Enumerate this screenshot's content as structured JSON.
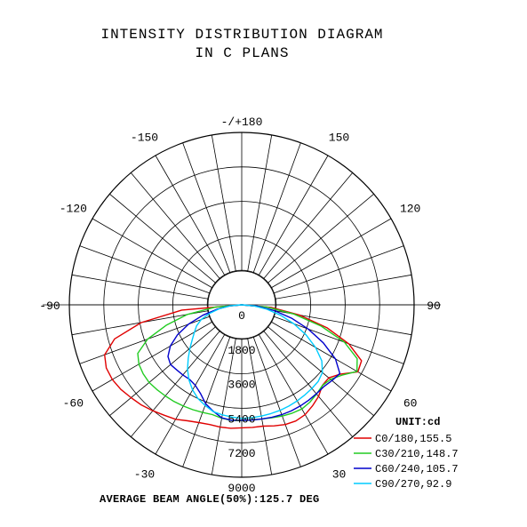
{
  "header": {
    "title_line1": "INTENSITY DISTRIBUTION DIAGRAM",
    "title_line2": "IN C PLANS"
  },
  "footer": {
    "beam_angle_text": "AVERAGE BEAM ANGLE(50%):125.7 DEG"
  },
  "chart_data": {
    "type": "polar",
    "title": "INTENSITY DISTRIBUTION DIAGRAM IN C PLANS",
    "unit_label": "UNIT:cd",
    "radial_range": [
      0,
      9000
    ],
    "radial_ticks": [
      0,
      1800,
      3600,
      5400,
      7200,
      9000
    ],
    "radial_tick_labels": [
      "0",
      "1800",
      "3600",
      "5400",
      "7200",
      "9000"
    ],
    "angle_ticks": [
      {
        "angle": 180,
        "label": "-/+180"
      },
      {
        "angle": 150,
        "label": "150"
      },
      {
        "angle": -150,
        "label": "-150"
      },
      {
        "angle": 120,
        "label": "120"
      },
      {
        "angle": -120,
        "label": "-120"
      },
      {
        "angle": 90,
        "label": "90"
      },
      {
        "angle": -90,
        "label": "-90"
      },
      {
        "angle": 60,
        "label": "60"
      },
      {
        "angle": -60,
        "label": "-60"
      },
      {
        "angle": 30,
        "label": "30"
      },
      {
        "angle": -30,
        "label": "-30"
      },
      {
        "angle": 0,
        "label": "0"
      }
    ],
    "grid": true,
    "legend_position": "bottom-right",
    "series": [
      {
        "name": "C0/180,155.5",
        "color": "#e00000",
        "points": [
          [
            90,
            0
          ],
          [
            85,
            1550
          ],
          [
            80,
            3050
          ],
          [
            75,
            4600
          ],
          [
            70,
            5950
          ],
          [
            65,
            6900
          ],
          [
            60,
            7000
          ],
          [
            55,
            6300
          ],
          [
            50,
            5930
          ],
          [
            45,
            5950
          ],
          [
            40,
            6240
          ],
          [
            35,
            6440
          ],
          [
            30,
            6620
          ],
          [
            25,
            6690
          ],
          [
            20,
            6650
          ],
          [
            15,
            6540
          ],
          [
            10,
            6430
          ],
          [
            5,
            6420
          ],
          [
            0,
            6420
          ],
          [
            -5,
            6470
          ],
          [
            -10,
            6480
          ],
          [
            -15,
            6470
          ],
          [
            -20,
            6540
          ],
          [
            -25,
            6680
          ],
          [
            -30,
            6900
          ],
          [
            -35,
            7040
          ],
          [
            -40,
            7220
          ],
          [
            -45,
            7400
          ],
          [
            -50,
            7540
          ],
          [
            -55,
            7700
          ],
          [
            -60,
            7800
          ],
          [
            -65,
            7800
          ],
          [
            -70,
            7620
          ],
          [
            -75,
            6870
          ],
          [
            -80,
            5330
          ],
          [
            -85,
            3140
          ],
          [
            -90,
            0
          ]
        ]
      },
      {
        "name": "C30/210,148.7",
        "color": "#22cc22",
        "points": [
          [
            90,
            0
          ],
          [
            85,
            1300
          ],
          [
            80,
            2760
          ],
          [
            75,
            4300
          ],
          [
            70,
            5700
          ],
          [
            65,
            6650
          ],
          [
            60,
            6950
          ],
          [
            55,
            6400
          ],
          [
            50,
            6050
          ],
          [
            45,
            5960
          ],
          [
            40,
            6080
          ],
          [
            35,
            6200
          ],
          [
            30,
            6280
          ],
          [
            25,
            6240
          ],
          [
            20,
            6180
          ],
          [
            15,
            6100
          ],
          [
            10,
            6050
          ],
          [
            5,
            6030
          ],
          [
            0,
            6040
          ],
          [
            -5,
            6060
          ],
          [
            -10,
            6010
          ],
          [
            -15,
            5930
          ],
          [
            -20,
            5980
          ],
          [
            -25,
            6040
          ],
          [
            -30,
            6100
          ],
          [
            -35,
            6160
          ],
          [
            -40,
            6210
          ],
          [
            -45,
            6260
          ],
          [
            -50,
            6310
          ],
          [
            -55,
            6280
          ],
          [
            -60,
            6200
          ],
          [
            -65,
            5990
          ],
          [
            -70,
            5230
          ],
          [
            -75,
            4060
          ],
          [
            -80,
            2880
          ],
          [
            -85,
            1390
          ],
          [
            -90,
            0
          ]
        ]
      },
      {
        "name": "C60/240,105.7",
        "color": "#0000cc",
        "points": [
          [
            90,
            0
          ],
          [
            85,
            820
          ],
          [
            80,
            1720
          ],
          [
            75,
            2700
          ],
          [
            70,
            3700
          ],
          [
            65,
            4700
          ],
          [
            60,
            5650
          ],
          [
            55,
            6250
          ],
          [
            50,
            6150
          ],
          [
            45,
            6050
          ],
          [
            40,
            6060
          ],
          [
            35,
            6080
          ],
          [
            30,
            6100
          ],
          [
            25,
            6110
          ],
          [
            20,
            6100
          ],
          [
            15,
            6080
          ],
          [
            10,
            6050
          ],
          [
            5,
            6040
          ],
          [
            0,
            6030
          ],
          [
            -5,
            6050
          ],
          [
            -10,
            5990
          ],
          [
            -15,
            5750
          ],
          [
            -20,
            5500
          ],
          [
            -25,
            5100
          ],
          [
            -30,
            4850
          ],
          [
            -35,
            4750
          ],
          [
            -40,
            4780
          ],
          [
            -45,
            4800
          ],
          [
            -50,
            4850
          ],
          [
            -55,
            4700
          ],
          [
            -60,
            4300
          ],
          [
            -65,
            3700
          ],
          [
            -70,
            2950
          ],
          [
            -75,
            2100
          ],
          [
            -80,
            1280
          ],
          [
            -85,
            620
          ],
          [
            -90,
            0
          ]
        ]
      },
      {
        "name": "C90/270,92.9",
        "color": "#00ccff",
        "points": [
          [
            90,
            0
          ],
          [
            85,
            640
          ],
          [
            80,
            1340
          ],
          [
            75,
            2100
          ],
          [
            70,
            2900
          ],
          [
            65,
            3700
          ],
          [
            60,
            4450
          ],
          [
            55,
            5100
          ],
          [
            50,
            5500
          ],
          [
            45,
            5650
          ],
          [
            40,
            5700
          ],
          [
            35,
            5740
          ],
          [
            30,
            5790
          ],
          [
            25,
            5830
          ],
          [
            20,
            5860
          ],
          [
            15,
            5880
          ],
          [
            10,
            5900
          ],
          [
            5,
            5920
          ],
          [
            0,
            5930
          ],
          [
            -5,
            5880
          ],
          [
            -10,
            5830
          ],
          [
            -15,
            5770
          ],
          [
            -20,
            5590
          ],
          [
            -25,
            5400
          ],
          [
            -30,
            5130
          ],
          [
            -35,
            4800
          ],
          [
            -40,
            4400
          ],
          [
            -45,
            3950
          ],
          [
            -50,
            3530
          ],
          [
            -55,
            3150
          ],
          [
            -60,
            2850
          ],
          [
            -65,
            2600
          ],
          [
            -70,
            2250
          ],
          [
            -75,
            1750
          ],
          [
            -80,
            1200
          ],
          [
            -85,
            600
          ],
          [
            -90,
            0
          ]
        ]
      }
    ]
  },
  "colors": {
    "grid": "#000000",
    "background": "#ffffff"
  }
}
